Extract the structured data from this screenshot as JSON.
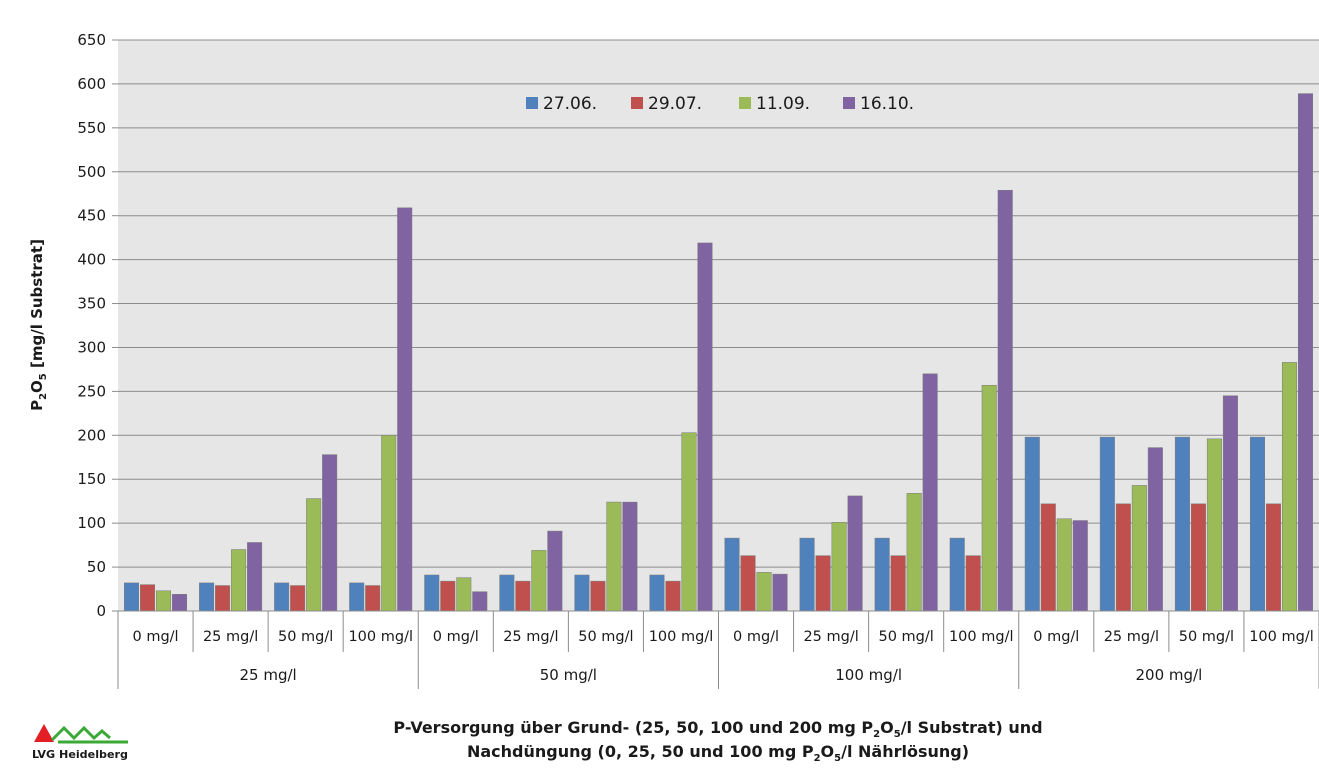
{
  "chart_data": {
    "type": "bar",
    "y_axis": {
      "label_main": "P",
      "label_sub1": "2",
      "label_mid": "O",
      "label_sub2": "5",
      "label_rest": " [mg/l Substrat]",
      "min": 0,
      "max": 650,
      "step": 50,
      "grid": true
    },
    "x_axis": {
      "title_line1_prefix": "P-Versorgung über Grund- (25, 50, 100 und 200 mg P",
      "title_line1_sub1": "2",
      "title_line1_mid": "O",
      "title_line1_sub2": "5",
      "title_line1_suffix": "/l Substrat) und",
      "title_line2_prefix": "Nachdüngung (0, 25, 50 und 100 mg P",
      "title_line2_sub1": "2",
      "title_line2_mid": "O",
      "title_line2_sub2": "5",
      "title_line2_suffix": "/l Nährlösung)"
    },
    "legend_position": "top-center",
    "series": [
      {
        "name": "27.06.",
        "color": "#4f81bd",
        "values": [
          32,
          32,
          32,
          32,
          41,
          41,
          41,
          41,
          83,
          83,
          83,
          83,
          198,
          198,
          198,
          198
        ]
      },
      {
        "name": "29.07.",
        "color": "#c0504d",
        "values": [
          30,
          29,
          29,
          29,
          34,
          34,
          34,
          34,
          63,
          63,
          63,
          63,
          122,
          122,
          122,
          122
        ]
      },
      {
        "name": "11.09.",
        "color": "#9bbb59",
        "values": [
          23,
          70,
          128,
          200,
          38,
          69,
          124,
          203,
          44,
          101,
          134,
          257,
          105,
          143,
          196,
          283
        ]
      },
      {
        "name": "16.10.",
        "color": "#8064a2",
        "values": [
          19,
          78,
          178,
          459,
          22,
          91,
          124,
          419,
          42,
          131,
          270,
          479,
          103,
          186,
          245,
          589
        ]
      }
    ],
    "groups": [
      {
        "label": "25 mg/l",
        "categories": [
          "0 mg/l",
          "25 mg/l",
          "50 mg/l",
          "100 mg/l"
        ]
      },
      {
        "label": "50 mg/l",
        "categories": [
          "0 mg/l",
          "25 mg/l",
          "50 mg/l",
          "100 mg/l"
        ]
      },
      {
        "label": "100 mg/l",
        "categories": [
          "0 mg/l",
          "25 mg/l",
          "50 mg/l",
          "100 mg/l"
        ]
      },
      {
        "label": "200 mg/l",
        "categories": [
          "0 mg/l",
          "25 mg/l",
          "50 mg/l",
          "100 mg/l"
        ]
      }
    ]
  },
  "logo": {
    "text": "LVG Heidelberg",
    "colors": {
      "triangle": "#e31e24",
      "wave": "#3aa935",
      "text": "#1a3d8f"
    }
  }
}
